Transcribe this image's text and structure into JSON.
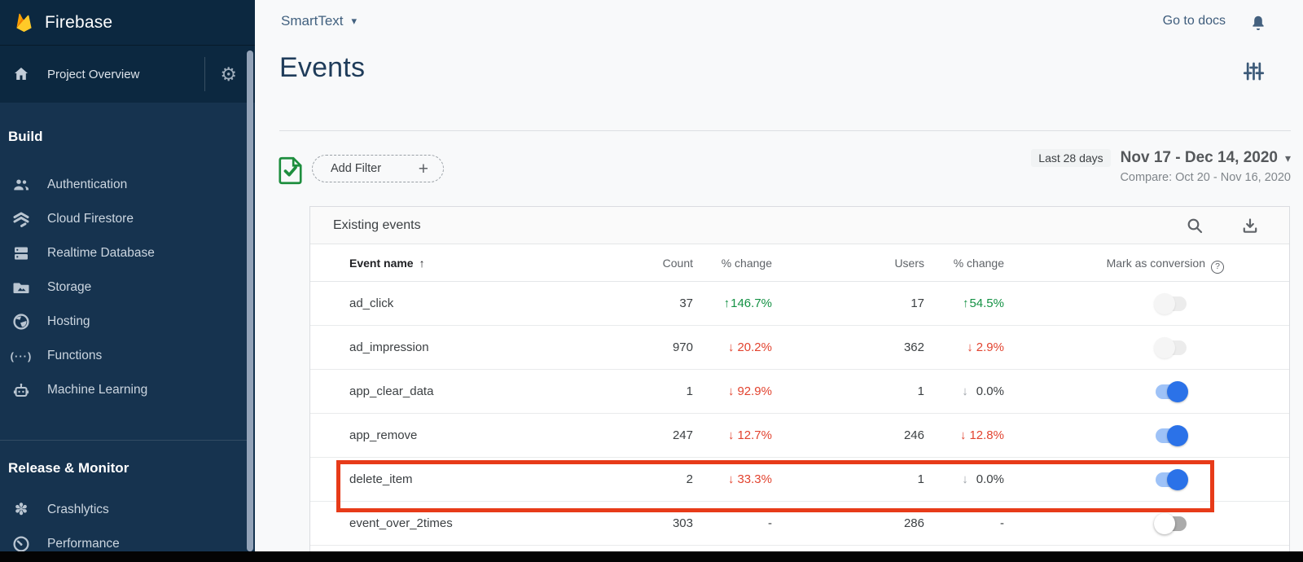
{
  "brand": {
    "name": "Firebase"
  },
  "topbar": {
    "project_selector": "SmartText",
    "go_to_docs": "Go to docs"
  },
  "sidebar": {
    "project_overview": "Project Overview",
    "sections": [
      {
        "heading": "Build",
        "items": [
          {
            "label": "Authentication",
            "icon": "people-icon"
          },
          {
            "label": "Cloud Firestore",
            "icon": "firestore-icon"
          },
          {
            "label": "Realtime Database",
            "icon": "database-icon"
          },
          {
            "label": "Storage",
            "icon": "storage-folder-icon"
          },
          {
            "label": "Hosting",
            "icon": "globe-icon"
          },
          {
            "label": "Functions",
            "icon": "functions-icon"
          },
          {
            "label": "Machine Learning",
            "icon": "robot-icon"
          }
        ]
      },
      {
        "heading": "Release & Monitor",
        "items": [
          {
            "label": "Crashlytics",
            "icon": "crashlytics-icon"
          },
          {
            "label": "Performance",
            "icon": "speedometer-icon"
          }
        ]
      }
    ]
  },
  "page": {
    "title": "Events"
  },
  "filter_bar": {
    "add_filter_label": "Add Filter",
    "date_preset_chip": "Last 28 days",
    "date_range": "Nov 17 - Dec 14, 2020",
    "compare_label": "Compare: Oct 20 - Nov 16, 2020"
  },
  "table": {
    "title": "Existing events",
    "columns": [
      "Event name",
      "Count",
      "% change",
      "Users",
      "% change",
      "Mark as conversion"
    ],
    "rows": [
      {
        "name": "ad_click",
        "count": "37",
        "count_change": "146.7%",
        "count_dir": "up",
        "users": "17",
        "users_change": "54.5%",
        "users_dir": "up",
        "toggle": "off-disabled",
        "highlighted": false
      },
      {
        "name": "ad_impression",
        "count": "970",
        "count_change": "20.2%",
        "count_dir": "down",
        "users": "362",
        "users_change": "2.9%",
        "users_dir": "down",
        "toggle": "off-disabled",
        "highlighted": false
      },
      {
        "name": "app_clear_data",
        "count": "1",
        "count_change": "92.9%",
        "count_dir": "down",
        "users": "1",
        "users_change": "0.0%",
        "users_dir": "down-neutral",
        "toggle": "on",
        "highlighted": false
      },
      {
        "name": "app_remove",
        "count": "247",
        "count_change": "12.7%",
        "count_dir": "down",
        "users": "246",
        "users_change": "12.8%",
        "users_dir": "down",
        "toggle": "on",
        "highlighted": false
      },
      {
        "name": "delete_item",
        "count": "2",
        "count_change": "33.3%",
        "count_dir": "down",
        "users": "1",
        "users_change": "0.0%",
        "users_dir": "down-neutral",
        "toggle": "on",
        "highlighted": true
      },
      {
        "name": "event_over_2times",
        "count": "303",
        "count_change": "-",
        "count_dir": "none",
        "users": "286",
        "users_change": "-",
        "users_dir": "none",
        "toggle": "off",
        "highlighted": false
      }
    ]
  },
  "colors": {
    "sidebar_navy": "#16334f",
    "sidebar_header_navy": "#0c2840",
    "accent_blue": "#2b72e8",
    "positive_green": "#149144",
    "negative_red": "#e2432f",
    "annotation_red": "#e73b19",
    "title_navy": "#1f3c5a"
  }
}
